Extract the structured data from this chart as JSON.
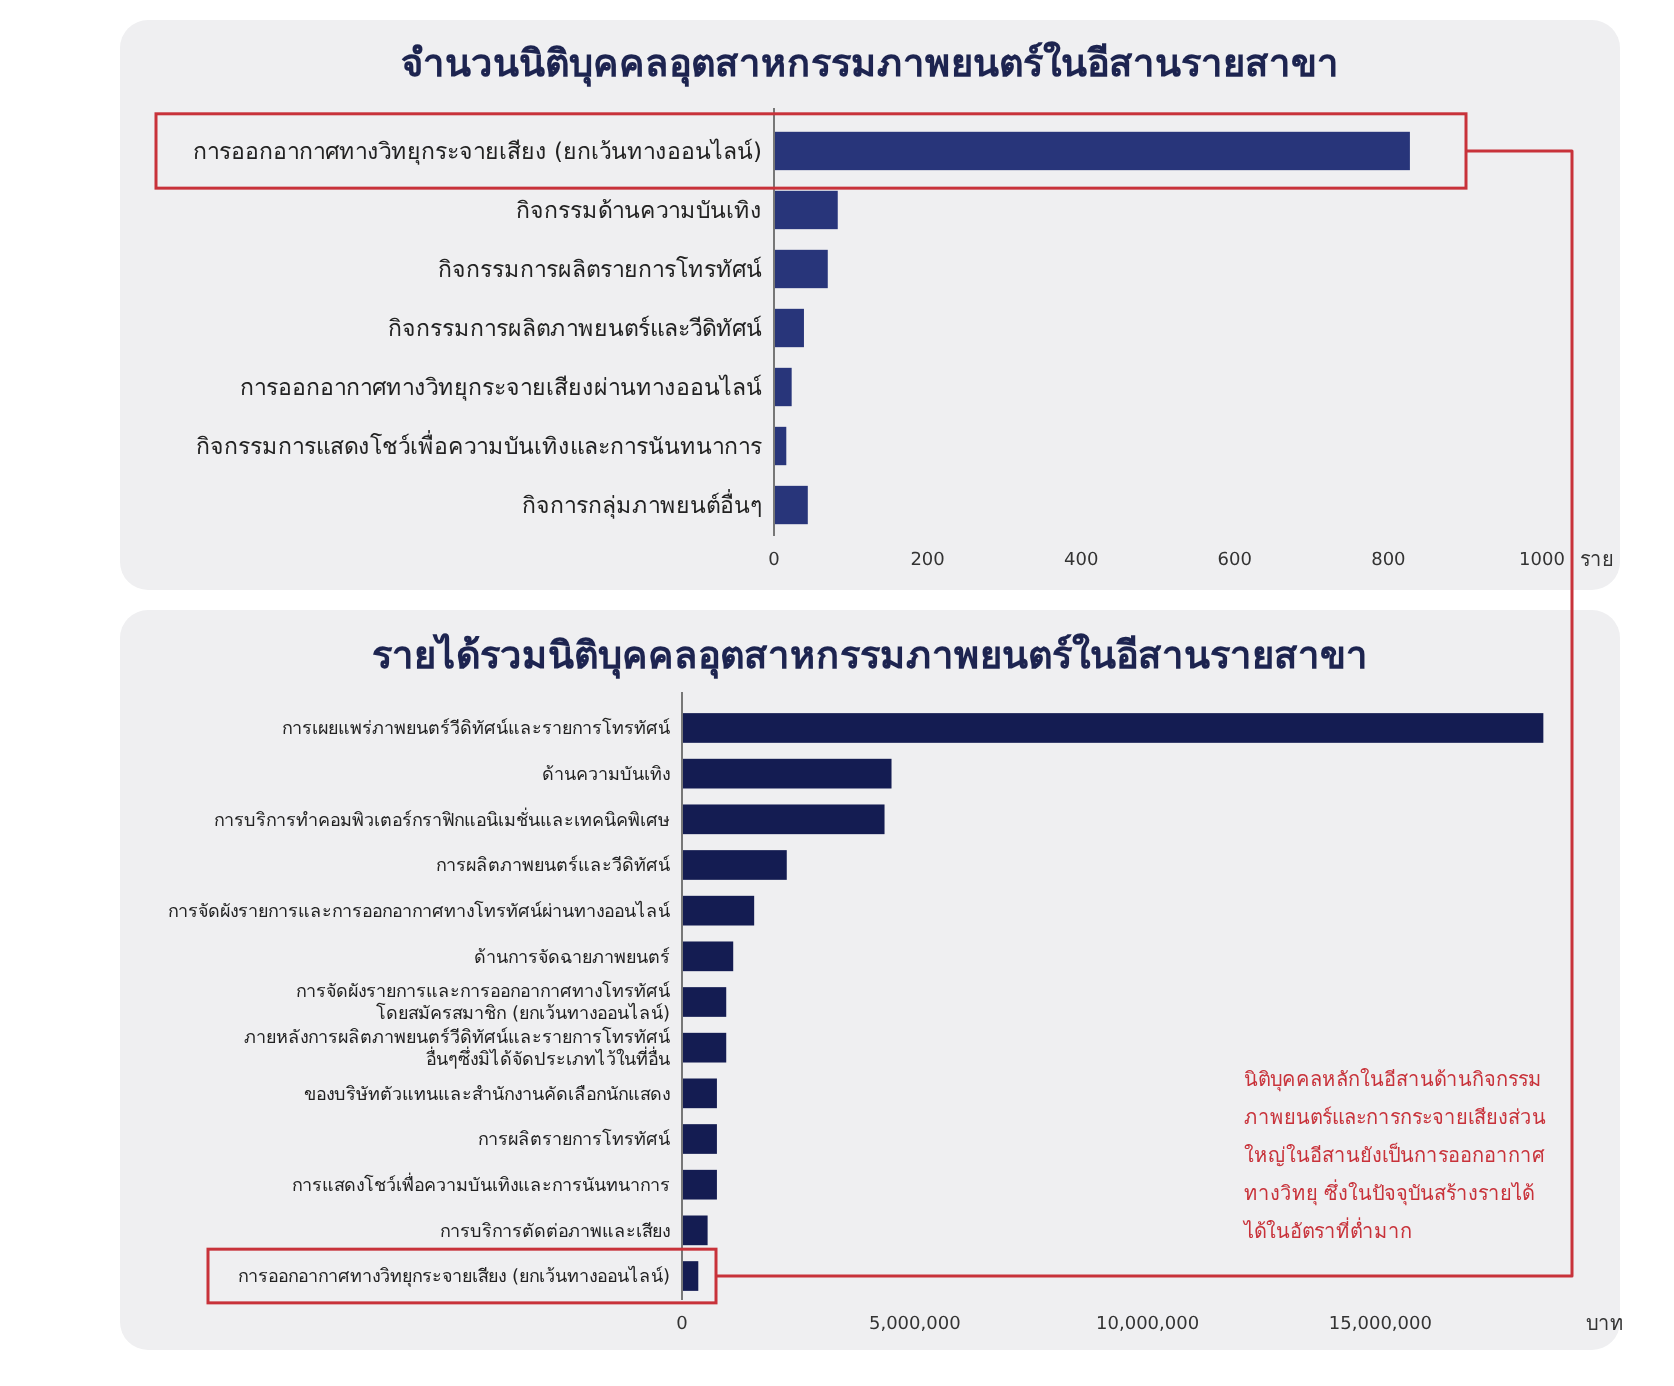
{
  "chart_data": [
    {
      "type": "bar",
      "orientation": "horizontal",
      "title": "จำนวนนิติบุคคลอุตสาหกรรมภาพยนตร์ในอีสานรายสาขา",
      "xlabel": "ราย",
      "categories": [
        "การออกอากาศทางวิทยุกระจายเสียง (ยกเว้นทางออนไลน์)",
        "กิจกรรมด้านความบันเทิง",
        "กิจกรรมการผลิตรายการโทรทัศน์",
        "กิจกรรมการผลิตภาพยนตร์และวีดิทัศน์",
        "การออกอากาศทางวิทยุกระจายเสียงผ่านทางออนไลน์",
        "กิจกรรมการแสดงโชว์เพื่อความบันเทิงและการนันทนาการ",
        "กิจการกลุ่มภาพยนต์อื่นๆ"
      ],
      "values": [
        828,
        83,
        70,
        39,
        23,
        16,
        44
      ],
      "color": "#28357a",
      "xlim": [
        0,
        1000
      ],
      "xticks": [
        0,
        200,
        400,
        600,
        800,
        1000
      ],
      "grid": false
    },
    {
      "type": "bar",
      "orientation": "horizontal",
      "title": "รายได้รวมนิติบุคคลอุตสาหกรรมภาพยนตร์ในอีสานรายสาขา",
      "xlabel": "บาท",
      "categories": [
        "การเผยแพร่ภาพยนตร์วีดิทัศน์และรายการโทรทัศน์",
        "ด้านความบันเทิง",
        "การบริการทำคอมพิวเตอร์กราฟิกแอนิเมชั่นและเทคนิคพิเศษ",
        "การผลิตภาพยนตร์และวีดิทัศน์",
        "การจัดผังรายการและการออกอากาศทางโทรทัศน์ผ่านทางออนไลน์",
        "ด้านการจัดฉายภาพยนตร์",
        "การจัดผังรายการและการออกอากาศทางโทรทัศน์\nโดยสมัครสมาชิก (ยกเว้นทางออนไลน์)",
        "ภายหลังการผลิตภาพยนตร์วีดิทัศน์และรายการโทรทัศน์\nอื่นๆซึ่งมิได้จัดประเภทไว้ในที่อื่น",
        "ของบริษัทตัวแทนและสำนักงานคัดเลือกนักแสดง",
        "การผลิตรายการโทรทัศน์",
        "การแสดงโชว์เพื่อความบันเทิงและการนันทนาการ",
        "การบริการตัดต่อภาพและเสียง",
        "การออกอากาศทางวิทยุกระจายเสียง (ยกเว้นทางออนไลน์)"
      ],
      "values": [
        18500000,
        4500000,
        4350000,
        2250000,
        1550000,
        1100000,
        950000,
        950000,
        750000,
        750000,
        750000,
        550000,
        350000
      ],
      "color": "#141c52",
      "xlim": [
        0,
        18600000
      ],
      "xticks": [
        0,
        {
          "value": 5000000,
          "label": "5,000,000"
        },
        {
          "value": 10000000,
          "label": "10,000,000"
        },
        {
          "value": 15000000,
          "label": "15,000,000"
        }
      ],
      "grid": false,
      "annotations": [
        "นิติบุคคลหลักในอีสานด้านกิจกรรม\nภาพยนตร์และการกระจายเสียงส่วน\nใหญ่ในอีสานยังเป็นการออกอากาศ\nทางวิทยุ ซึ่งในปัจจุบันสร้างรายได้\nได้ในอัตราที่ต่ำมาก"
      ]
    }
  ]
}
